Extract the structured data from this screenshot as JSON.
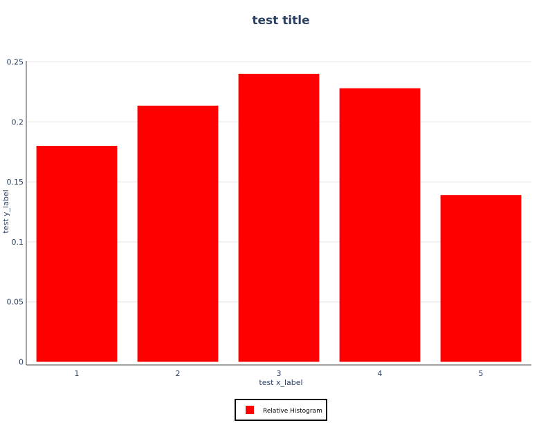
{
  "chart_data": {
    "type": "bar",
    "title": "test title",
    "xlabel": "test x_label",
    "ylabel": "test y_label",
    "categories": [
      "1",
      "2",
      "3",
      "4",
      "5"
    ],
    "series": [
      {
        "name": "Relative Histogram",
        "values": [
          0.18,
          0.2135,
          0.24,
          0.228,
          0.139
        ]
      }
    ],
    "ylim": [
      0,
      0.25
    ],
    "yticks": [
      0,
      0.05,
      0.1,
      0.15,
      0.2,
      0.25
    ],
    "ytick_labels": [
      "0",
      "0.05",
      "0.1",
      "0.15",
      "0.2",
      "0.25"
    ],
    "grid": true,
    "legend_position": "bottom-center",
    "colors": {
      "bar": "#ff0000",
      "text": "#2a3f5f",
      "grid": "#e5e5e5",
      "axis": "#444444"
    }
  }
}
